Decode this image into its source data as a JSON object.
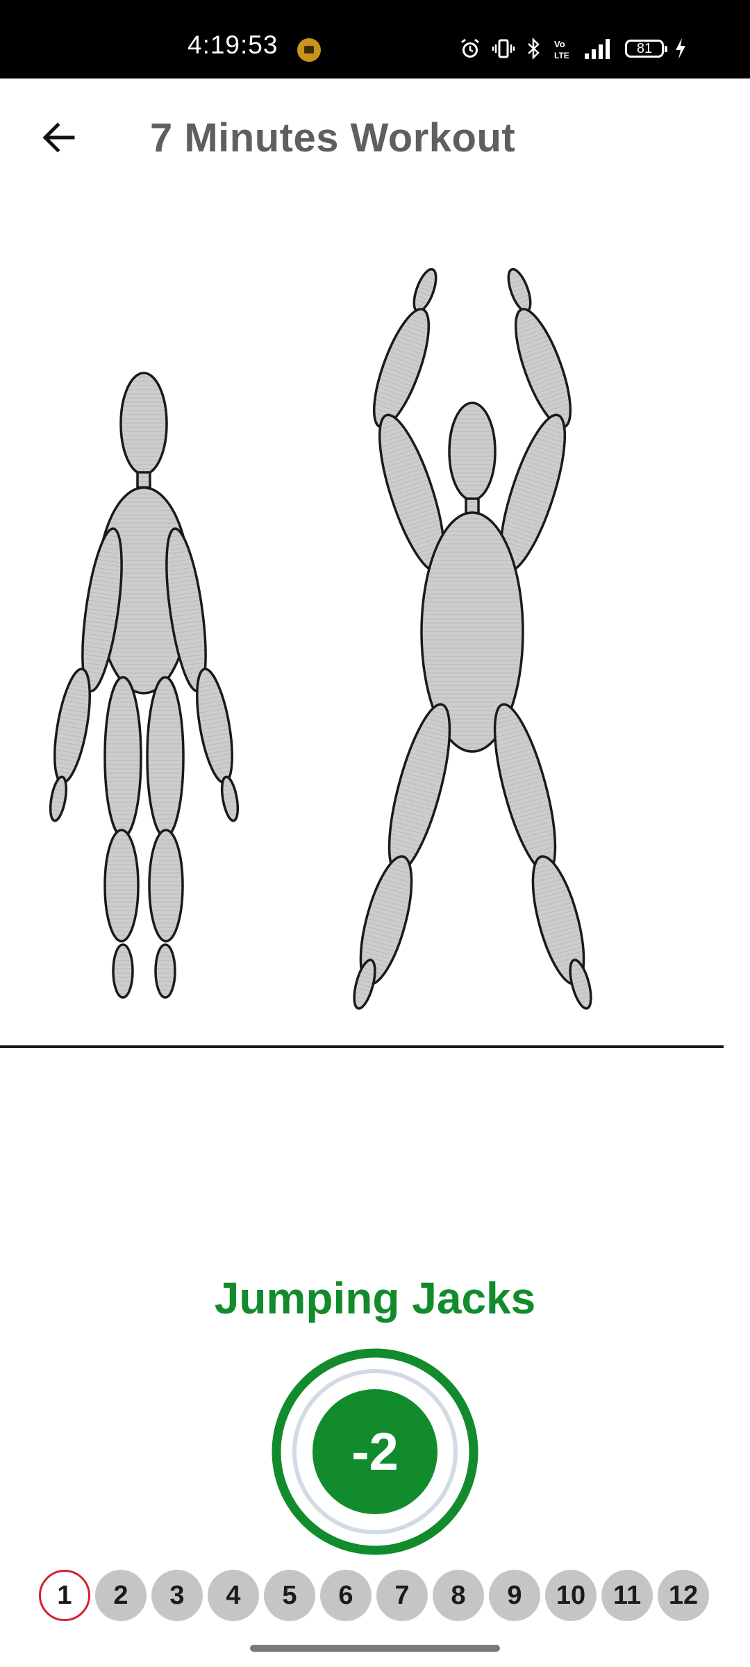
{
  "status_bar": {
    "time": "4:19:53",
    "battery_level": "81",
    "network_label": "Vo LTE",
    "icons": [
      "app-notification-icon",
      "alarm-icon",
      "vibrate-icon",
      "bluetooth-icon",
      "volte-icon",
      "signal-icon",
      "battery-icon",
      "charging-icon"
    ]
  },
  "app_bar": {
    "title": "7 Minutes Workout",
    "back_icon": "arrow-left-icon"
  },
  "exercise": {
    "name": "Jumping Jacks",
    "timer_value": "-2",
    "illustration": "jumping-jacks-figures"
  },
  "steps": {
    "active_index": 0,
    "items": [
      "1",
      "2",
      "3",
      "4",
      "5",
      "6",
      "7",
      "8",
      "9",
      "10",
      "11",
      "12"
    ]
  },
  "colors": {
    "accent": "#118b2b",
    "active_step_border": "#d3222b",
    "step_inactive": "#c5c5c5",
    "title_text": "#5f5f5f"
  }
}
